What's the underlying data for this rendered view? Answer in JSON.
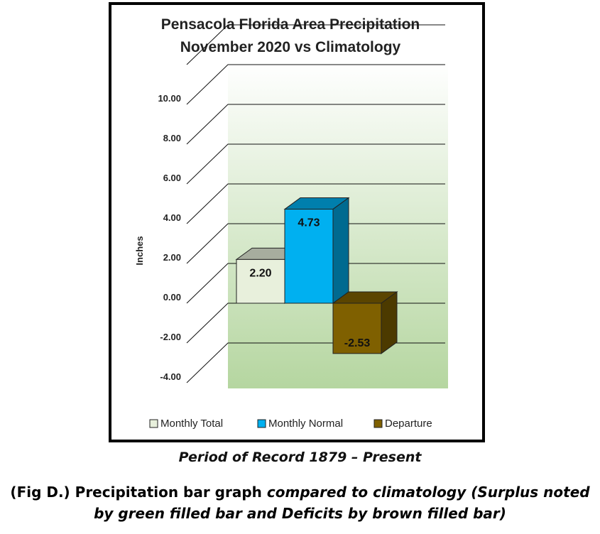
{
  "chart_data": {
    "type": "bar",
    "title_line1": "Pensacola Florida Area Precipitation",
    "title_line2": "November 2020 vs Climatology",
    "ylabel": "Inches",
    "ylim": [
      -4,
      12
    ],
    "yticks": [
      10,
      8,
      6,
      4,
      2,
      0,
      -2,
      -4
    ],
    "ytick_labels": [
      "10.00",
      "8.00",
      "6.00",
      "4.00",
      "2.00",
      "0.00",
      "-2.00",
      "-4.00"
    ],
    "grid": true,
    "style": "3d",
    "legend_position": "bottom",
    "series": [
      {
        "name": "Monthly Total",
        "value": 2.2,
        "label": "2.20",
        "color": "#e8f0dc"
      },
      {
        "name": "Monthly Normal",
        "value": 4.73,
        "label": "4.73",
        "color": "#00b0f0"
      },
      {
        "name": "Departure",
        "value": -2.53,
        "label": "-2.53",
        "color": "#7f6000"
      }
    ]
  },
  "captions": {
    "period": "Period of Record 1879 – Present",
    "fig_bold": "(Fig D.) Precipitation bar graph",
    "fig_italic": "compared to climatology (Surplus noted by green filled bar and Deficits by brown filled bar)"
  }
}
